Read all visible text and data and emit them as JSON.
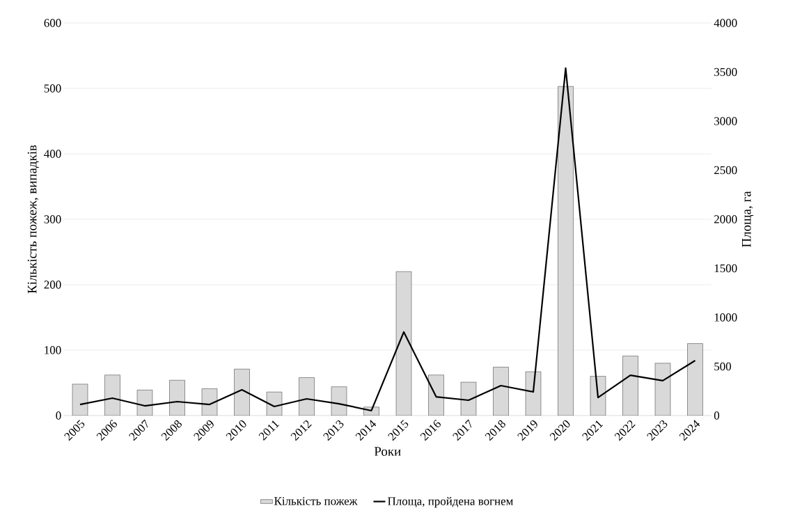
{
  "chart_data": {
    "type": "bar",
    "xlabel": "Роки",
    "ylabel": "Кількість пожеж, випадків",
    "y2label": "Площа, га",
    "categories": [
      "2005",
      "2006",
      "2007",
      "2008",
      "2009",
      "2010",
      "2011",
      "2012",
      "2013",
      "2014",
      "2015",
      "2016",
      "2017",
      "2018",
      "2019",
      "2020",
      "2021",
      "2022",
      "2023",
      "2024"
    ],
    "series": [
      {
        "name": "Кількість пожеж",
        "color": "#d9d9d9",
        "values": [
          48,
          62,
          39,
          54,
          41,
          71,
          36,
          58,
          44,
          13,
          220,
          62,
          51,
          74,
          67,
          503,
          60,
          91,
          80,
          110
        ]
      },
      {
        "name": "Площа, пройдена вогнем",
        "type": "line",
        "axis": "y2",
        "color": "#000000",
        "values": [
          113,
          177,
          99,
          142,
          113,
          262,
          92,
          170,
          120,
          50,
          851,
          191,
          156,
          305,
          241,
          3540,
          184,
          411,
          355,
          560
        ]
      }
    ],
    "ylim": [
      0,
      600
    ],
    "yticks": [
      0,
      100,
      200,
      300,
      400,
      500,
      600
    ],
    "y2lim": [
      0,
      4000
    ],
    "y2ticks": [
      0,
      500,
      1000,
      1500,
      2000,
      2500,
      3000,
      3500,
      4000
    ],
    "grid": "y",
    "legend": "bottom",
    "marker": "none",
    "line_style": "solid"
  }
}
